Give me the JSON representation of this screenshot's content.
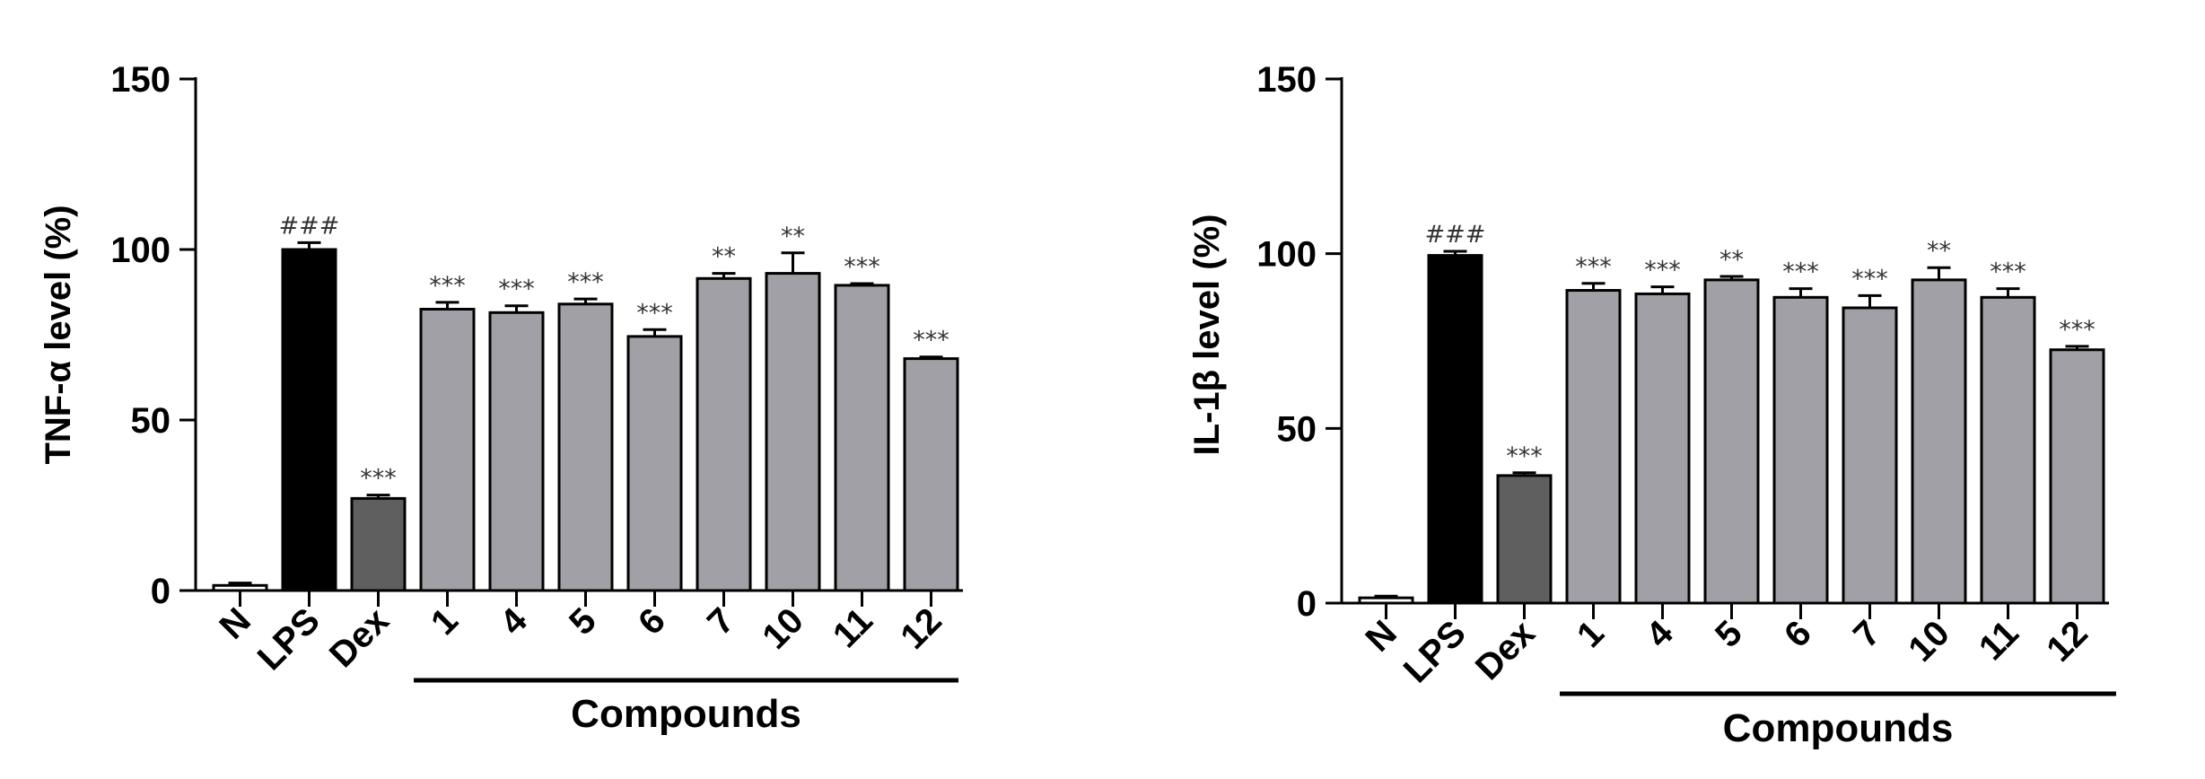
{
  "chart_data": [
    {
      "type": "bar",
      "ylabel": "TNF-α level (%)",
      "ylim": [
        0,
        150
      ],
      "yticks": [
        0,
        50,
        100,
        150
      ],
      "categories": [
        "N",
        "LPS",
        "Dex",
        "1",
        "4",
        "5",
        "6",
        "7",
        "10",
        "11",
        "12"
      ],
      "values": [
        1.5,
        100,
        27,
        82.5,
        81.5,
        84,
        74.5,
        91.5,
        93,
        89.5,
        68
      ],
      "errors": [
        0.7,
        2,
        1,
        2,
        2,
        1.5,
        2,
        1.5,
        6,
        0.5,
        0.5
      ],
      "significance": [
        "",
        "###",
        "***",
        "***",
        "***",
        "***",
        "***",
        "**",
        "**",
        "***",
        "***"
      ],
      "bar_colors": [
        "#ffffff",
        "#000000",
        "#5f5f5f",
        "#a0a0a6",
        "#a0a0a6",
        "#a0a0a6",
        "#a0a0a6",
        "#a0a0a6",
        "#a0a0a6",
        "#a0a0a6",
        "#a0a0a6"
      ],
      "group_label": "Compounds",
      "group_range": [
        3,
        10
      ]
    },
    {
      "type": "bar",
      "ylabel": "IL-1β level (%)",
      "ylim": [
        0,
        150
      ],
      "yticks": [
        0,
        50,
        100,
        150
      ],
      "categories": [
        "N",
        "LPS",
        "Dex",
        "1",
        "4",
        "5",
        "6",
        "7",
        "10",
        "11",
        "12"
      ],
      "values": [
        1.5,
        99.5,
        36.5,
        89.5,
        88.5,
        92.5,
        87.5,
        84.5,
        92.5,
        87.5,
        72.5
      ],
      "errors": [
        0.5,
        1.2,
        0.8,
        2,
        2,
        1,
        2.5,
        3.5,
        3.5,
        2.5,
        1
      ],
      "significance": [
        "",
        "###",
        "***",
        "***",
        "***",
        "**",
        "***",
        "***",
        "**",
        "***",
        "***"
      ],
      "bar_colors": [
        "#ffffff",
        "#000000",
        "#5f5f5f",
        "#a0a0a6",
        "#a0a0a6",
        "#a0a0a6",
        "#a0a0a6",
        "#a0a0a6",
        "#a0a0a6",
        "#a0a0a6",
        "#a0a0a6"
      ],
      "group_label": "Compounds",
      "group_range": [
        3,
        10
      ]
    }
  ]
}
